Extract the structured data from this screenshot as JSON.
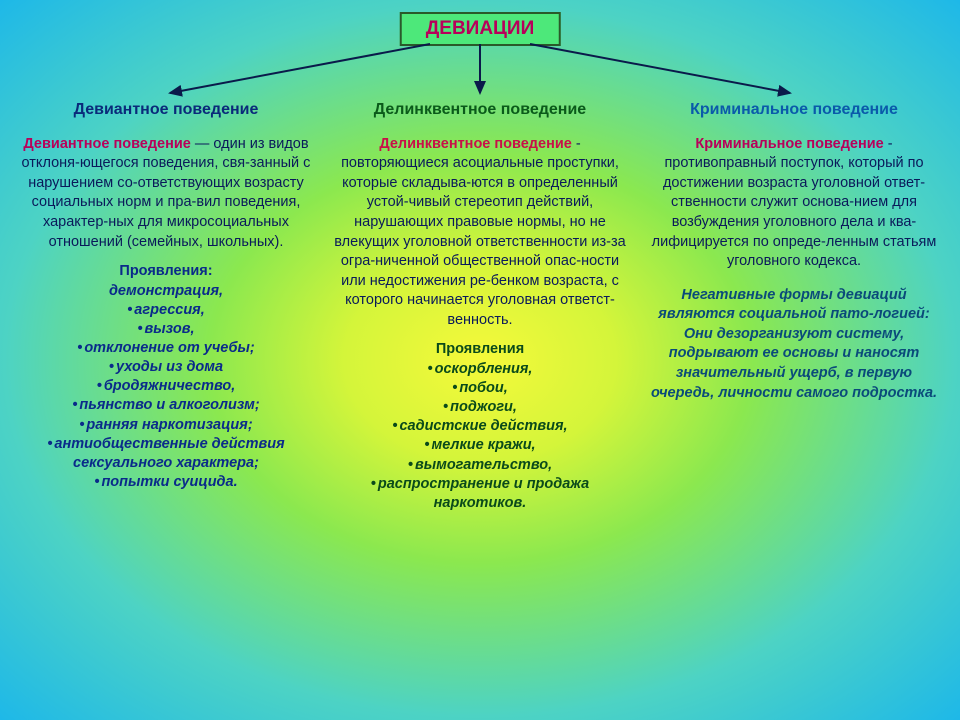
{
  "colors": {
    "root_text": "#b8005a",
    "root_bg": "#4de87a",
    "root_border": "#2a5a2a",
    "col1_heading": "#0a2a7a",
    "col2_heading": "#0a5a1a",
    "col3_heading": "#0a5aaa",
    "col1_term": "#b8005a",
    "col2_term": "#c81048",
    "col3_term": "#b8005a",
    "body_text": "#0a1a5a",
    "manifest1": "#0a2a8a",
    "manifest2": "#0a4a1a",
    "manifest3": "#0a4a7a",
    "arrow": "#0a1a4a"
  },
  "root": "ДЕВИАЦИИ",
  "col1": {
    "heading": "Девиантное поведение",
    "term": "Девиантное поведение",
    "def": " — один из видов отклоня-ющегося поведения, свя-занный с нарушением со-ответствующих возрасту социальных норм и пра-вил поведения, характер-ных для микросоциальных отношений (семейных, школьных).",
    "manifest_title": "Проявления:",
    "items": [
      "демонстрация,",
      "агрессия,",
      "вызов,",
      "отклонение от учебы;",
      "уходы из дома",
      "бродяжничество,",
      "пьянство и алкоголизм;",
      "ранняя наркотизация;",
      "антиобщественные действия сексуального характера;",
      "попытки суицида."
    ]
  },
  "col2": {
    "heading": "Делинквентное поведение",
    "term": "Делинквентное поведение",
    "def": " - повторяющиеся асоциальные проступки, которые складыва-ются в определенный устой-чивый стереотип действий, нарушающих правовые нормы, но не влекущих уголовной ответственности из-за огра-ниченной общественной опас-ности или недостижения ре-бенком возраста, с которого начинается уголовная ответст-венность.",
    "manifest_title": "Проявления",
    "items": [
      "оскорбления,",
      "побои,",
      "поджоги,",
      "садистские действия,",
      "мелкие кражи,",
      "вымогательство,",
      "распространение и продажа наркотиков."
    ]
  },
  "col3": {
    "heading": "Криминальное поведение",
    "term": "Криминальное поведение",
    "def": " - противоправный поступок, который по достижении возраста уголовной ответ-ственности служит основа-нием для возбуждения уголовного дела и ква-лифицируется по опреде-ленным статьям уголовного кодекса.",
    "note": "Негативные формы девиаций являются социальной пато-логией: Они дезорганизуют систему, подрывают ее основы и наносят значительный ущерб, в первую очередь, личности самого подростка."
  }
}
